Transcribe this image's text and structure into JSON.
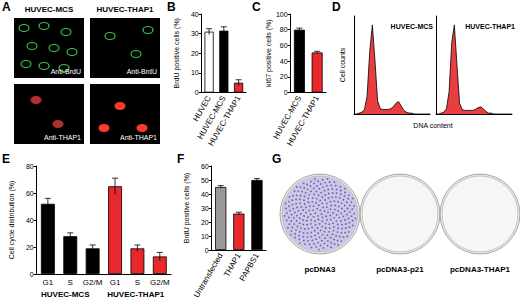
{
  "panels": [
    {
      "letter": "A",
      "columns": [
        "HUVEC-MCS",
        "HUVEC-THAP1"
      ],
      "rows": [
        "Anti-BrdU",
        "Anti-THAP1"
      ]
    },
    {
      "letter": "G",
      "labels": [
        "pcDNA3",
        "pcDNA3-p21",
        "pcDNA3-THAP1"
      ]
    }
  ],
  "chart_data": [
    {
      "panel": "B",
      "type": "bar",
      "ylabel": "BrdU positive cells (%)",
      "categories": [
        "HUVEC",
        "HUVEC-MCS",
        "HUVEC-THAP1"
      ],
      "values": [
        31,
        31.5,
        5
      ],
      "errors": [
        1.5,
        2,
        1.5
      ],
      "colors": [
        "#ffffff",
        "#000000",
        "#e8282b"
      ],
      "ylim": [
        0,
        40
      ],
      "yticks": [
        0,
        10,
        20,
        30,
        40
      ],
      "grid": false
    },
    {
      "panel": "C",
      "type": "bar",
      "ylabel": "kI67 positive cells (%)",
      "categories": [
        "HUVEC-MCS",
        "HUVEC-THAP1"
      ],
      "values": [
        80,
        51
      ],
      "errors": [
        2,
        1.5
      ],
      "colors": [
        "#000000",
        "#e8282b"
      ],
      "ylim": [
        0,
        100
      ],
      "yticks": [
        0,
        20,
        40,
        60,
        80,
        100
      ],
      "grid": false
    },
    {
      "panel": "D",
      "type": "area",
      "xlabel": "DNA content",
      "ylabel": "Cell counts",
      "x": [
        0,
        1,
        2,
        3,
        4,
        5,
        6,
        7,
        8,
        9,
        10,
        11,
        12,
        13,
        14,
        15,
        16,
        17,
        18,
        19,
        20,
        21,
        22,
        23,
        24,
        25,
        26,
        27,
        28,
        29
      ],
      "series": [
        {
          "name": "HUVEC-MCS",
          "color": "#e8282b",
          "values": [
            0,
            0,
            1,
            2,
            5,
            20,
            70,
            100,
            60,
            15,
            6,
            5,
            5,
            5,
            6,
            8,
            12,
            14,
            9,
            4,
            2,
            1,
            1,
            0,
            0,
            0,
            0,
            0,
            0,
            0
          ]
        },
        {
          "name": "HUVEC-THAP1",
          "color": "#e8282b",
          "values": [
            0,
            0,
            1,
            2,
            6,
            25,
            80,
            100,
            55,
            12,
            5,
            4,
            4,
            4,
            4,
            5,
            7,
            8,
            6,
            3,
            1,
            1,
            0,
            0,
            0,
            0,
            0,
            0,
            0,
            0
          ]
        }
      ],
      "xlim": [
        0,
        29
      ],
      "ylim": [
        0,
        110
      ],
      "tick_labels": false,
      "grid": false
    },
    {
      "panel": "E",
      "type": "bar",
      "ylabel": "Cell cycle distribution (%)",
      "categories": [
        "G1",
        "S",
        "G2/M",
        "G1",
        "S",
        "G2/M"
      ],
      "values": [
        52,
        28,
        19,
        65,
        19,
        13
      ],
      "errors": [
        4,
        2.5,
        2.5,
        6,
        2.5,
        3
      ],
      "colors": [
        "#000000",
        "#000000",
        "#000000",
        "#e8282b",
        "#e8282b",
        "#e8282b"
      ],
      "annotations": [
        "HUVEC-MCS",
        "HUVEC-THAP1"
      ],
      "ylim": [
        0,
        80
      ],
      "yticks": [
        0,
        20,
        40,
        60,
        80
      ],
      "grid": false
    },
    {
      "panel": "F",
      "type": "bar",
      "ylabel": "BrdU positive cells (%)",
      "categories": [
        "Untransfected",
        "THAP1",
        "PAPBS1"
      ],
      "values": [
        45,
        26,
        50
      ],
      "errors": [
        1,
        1,
        1
      ],
      "colors": [
        "#999999",
        "#e8282b",
        "#000000"
      ],
      "ylim": [
        0,
        60
      ],
      "yticks": [
        0,
        10,
        20,
        30,
        40,
        50,
        60
      ],
      "grid": false
    }
  ]
}
